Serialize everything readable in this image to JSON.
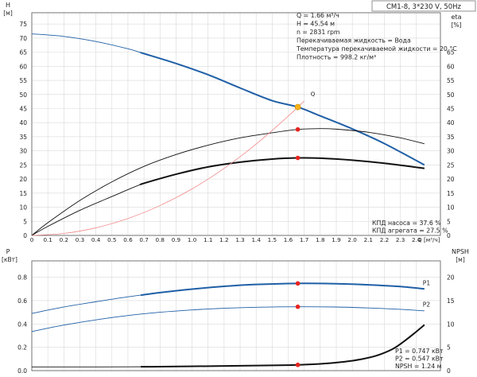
{
  "model_label": "CM1-8, 3*230 V, 50Hz",
  "colors": {
    "blue": "#1f5fa6",
    "black": "#111111",
    "red": "#f28a8a",
    "point_red": "#e8231e",
    "point_yellow": "#f6b21b",
    "grid": "#d9d9d9",
    "axis": "#555555"
  },
  "chart_data": [
    {
      "type": "line",
      "panel": "top",
      "axes": {
        "x_label": "Q [м³/ч]",
        "x_ticks": [
          "0",
          "0.1",
          "0.2",
          "0.3",
          "0.4",
          "0.5",
          "0.6",
          "0.7",
          "0.8",
          "0.9",
          "1.0",
          "1.1",
          "1.2",
          "1.3",
          "1.4",
          "1.5",
          "1.6",
          "1.7",
          "1.8",
          "1.9",
          "2.0",
          "2.1",
          "2.2",
          "2.3",
          "2.4"
        ],
        "xlim": [
          0,
          2.55
        ],
        "y_left_label": "H",
        "y_left_unit": "[м]",
        "y_left_ticks": [
          "0",
          "5",
          "10",
          "15",
          "20",
          "25",
          "30",
          "35",
          "40",
          "45",
          "50",
          "55",
          "60",
          "65",
          "70",
          "75"
        ],
        "y_right_label": "eta",
        "y_right_unit": "[%]",
        "y_right_ticks": [
          "0",
          "5",
          "10",
          "15",
          "20",
          "25",
          "30",
          "35",
          "40",
          "45",
          "50",
          "55",
          "60",
          "65"
        ],
        "ylim": [
          0,
          79
        ]
      },
      "info_lines": [
        "Q = 1.66 м³/ч",
        "H = 45.54 м",
        "n = 2831 rpm",
        "Перекачиваемая жидкость = Вода",
        "Температура перекачиваемой жидкости = 20 °C",
        "Плотность = 998.2 кг/м³"
      ],
      "efficiency_labels": [
        "КПД насоса = 37.6 %",
        "КПД агрегата = 27.5 %"
      ],
      "operating_point_label": "Q",
      "series": [
        {
          "role": "head",
          "color": "blue",
          "x": [
            0,
            0.2,
            0.4,
            0.6,
            0.7,
            0.9,
            1.1,
            1.3,
            1.5,
            1.66,
            1.8,
            2.0,
            2.2,
            2.45
          ],
          "y": [
            71.5,
            70.6,
            68.8,
            66.2,
            64.5,
            61.0,
            57.0,
            52.3,
            47.8,
            45.54,
            42.4,
            37.8,
            32.6,
            25.0
          ],
          "thick_from": 0.68
        },
        {
          "role": "pump_efficiency",
          "color": "black",
          "x": [
            0,
            0.1,
            0.3,
            0.5,
            0.7,
            0.9,
            1.1,
            1.3,
            1.5,
            1.66,
            1.8,
            1.9,
            2.1,
            2.3,
            2.45
          ],
          "y": [
            0,
            4.5,
            12.4,
            19.0,
            24.5,
            28.7,
            32.0,
            34.6,
            36.4,
            37.6,
            37.9,
            37.7,
            36.6,
            34.6,
            32.5
          ]
        },
        {
          "role": "unit_efficiency",
          "color": "black",
          "x": [
            0,
            0.1,
            0.3,
            0.5,
            0.7,
            0.9,
            1.1,
            1.3,
            1.5,
            1.66,
            1.8,
            2.0,
            2.2,
            2.45
          ],
          "y": [
            0,
            3.2,
            8.9,
            13.8,
            18.5,
            21.7,
            24.3,
            26.0,
            27.1,
            27.5,
            27.4,
            26.7,
            25.6,
            23.8
          ],
          "thick_from": 0.68
        },
        {
          "role": "system_curve",
          "color": "red",
          "x": [
            0,
            0.2,
            0.4,
            0.6,
            0.8,
            1.0,
            1.2,
            1.4,
            1.6,
            1.7
          ],
          "y": [
            0,
            0.7,
            2.7,
            6.0,
            10.6,
            16.5,
            23.8,
            32.4,
            42.3,
            47.7
          ]
        }
      ],
      "points": [
        {
          "x": 1.66,
          "y": 45.54,
          "color": "point_yellow"
        },
        {
          "x": 1.66,
          "y": 37.6,
          "color": "point_red"
        },
        {
          "x": 1.66,
          "y": 27.5,
          "color": "point_red"
        }
      ]
    },
    {
      "type": "line",
      "panel": "bottom",
      "axes": {
        "y_left_label": "P",
        "y_left_unit": "[кВт]",
        "y_left_ticks": [
          "0.0",
          "0.2",
          "0.4",
          "0.6",
          "0.8"
        ],
        "ylim": [
          0,
          0.94
        ],
        "y_right_label": "NPSH",
        "y_right_unit": "[м]",
        "y_right_ticks": [
          "0",
          "5",
          "10",
          "15",
          "20"
        ],
        "y_right_lim": [
          0,
          23.5
        ],
        "xlim": [
          0,
          2.55
        ]
      },
      "series": [
        {
          "name": "P1",
          "color": "blue",
          "axis": "left",
          "x": [
            0,
            0.2,
            0.4,
            0.6,
            0.8,
            1.0,
            1.2,
            1.4,
            1.66,
            1.9,
            2.1,
            2.3,
            2.45
          ],
          "y": [
            0.49,
            0.545,
            0.59,
            0.632,
            0.668,
            0.698,
            0.722,
            0.738,
            0.747,
            0.744,
            0.735,
            0.72,
            0.7
          ],
          "thick_from": 0.68
        },
        {
          "name": "P2",
          "color": "blue",
          "axis": "left",
          "x": [
            0,
            0.2,
            0.4,
            0.6,
            0.8,
            1.0,
            1.2,
            1.4,
            1.66,
            1.9,
            2.1,
            2.3,
            2.45
          ],
          "y": [
            0.335,
            0.39,
            0.435,
            0.472,
            0.5,
            0.52,
            0.534,
            0.543,
            0.547,
            0.545,
            0.537,
            0.525,
            0.512
          ]
        },
        {
          "role": "npsh",
          "color": "black",
          "axis": "right",
          "x": [
            0,
            0.4,
            0.8,
            1.2,
            1.5,
            1.66,
            1.8,
            1.95,
            2.05,
            2.15,
            2.25,
            2.32,
            2.38,
            2.45
          ],
          "y": [
            0.8,
            0.8,
            0.85,
            1.0,
            1.12,
            1.24,
            1.45,
            1.9,
            2.4,
            3.2,
            4.6,
            6.2,
            7.8,
            9.8
          ],
          "thick_from": 0.68
        }
      ],
      "points": [
        {
          "x": 1.66,
          "y": 0.747,
          "axis": "left",
          "color": "point_red"
        },
        {
          "x": 1.66,
          "y": 0.547,
          "axis": "left",
          "color": "point_red"
        },
        {
          "x": 1.66,
          "y": 1.24,
          "axis": "right",
          "color": "point_red"
        }
      ],
      "values_box": [
        "P1 = 0.747 кВт",
        "P2 = 0.547 кВт",
        "NPSH = 1.24 м"
      ]
    }
  ]
}
